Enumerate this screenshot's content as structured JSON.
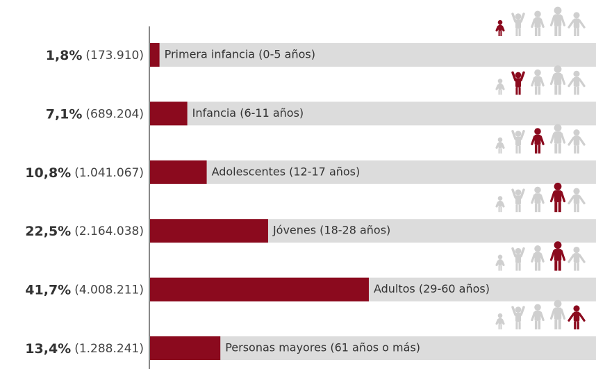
{
  "chart_data": {
    "type": "bar",
    "orientation": "horizontal",
    "categories": [
      "Primera infancia (0-5 años)",
      "Infancia (6-11 años)",
      "Adolescentes (12-17 años)",
      "Jóvenes (18-28 años)",
      "Adultos (29-60 años)",
      "Personas mayores (61 años o más)"
    ],
    "values": [
      1.8,
      7.1,
      10.8,
      22.5,
      41.7,
      13.4
    ],
    "value_labels": [
      "1,8%",
      "7,1%",
      "10,8%",
      "22,5%",
      "41,7%",
      "13,4%"
    ],
    "population": [
      173910,
      689204,
      1041067,
      2164038,
      4008211,
      1288241
    ],
    "population_labels": [
      "(173.910)",
      "(689.204)",
      "(1.041.067)",
      "(2.164.038)",
      "(4.008.211)",
      "(1.288.241)"
    ],
    "color": "#8b0a1e",
    "track_color": "#dcdcdc",
    "icon_color": "#cfcfcf",
    "icon_highlight": [
      0,
      1,
      2,
      3,
      3,
      4
    ],
    "xlim": [
      0,
      85
    ]
  }
}
